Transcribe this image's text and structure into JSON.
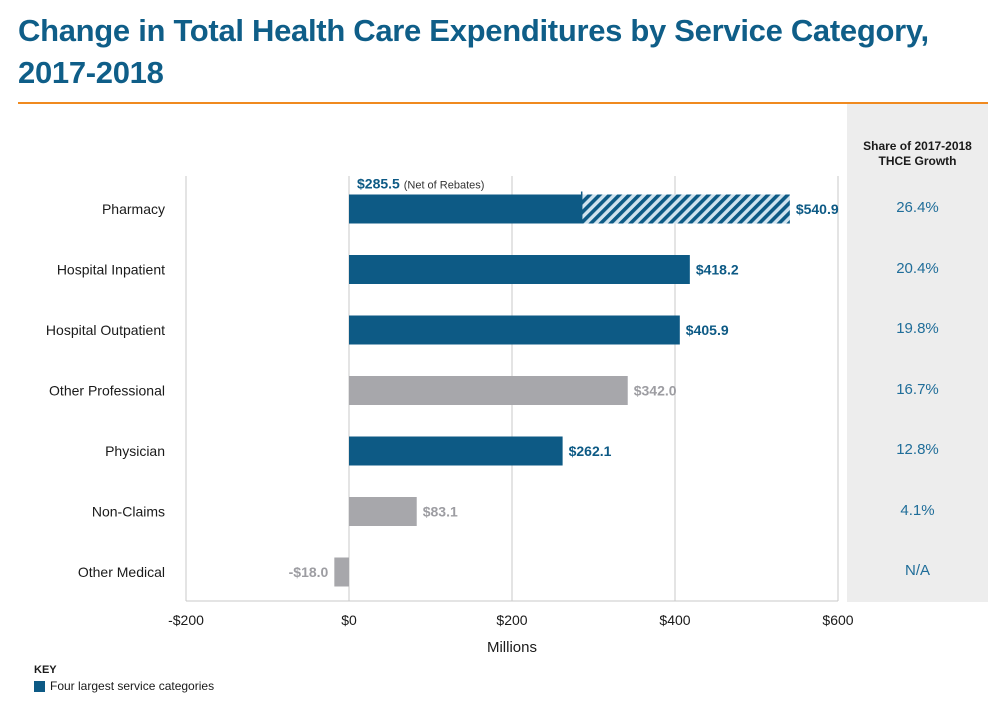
{
  "title": "Change in Total Health Care Expenditures by Service Category, 2017-2018",
  "share_header": "Share of 2017-2018\nTHCE Growth",
  "key": {
    "title": "KEY",
    "label": "Four largest service categories"
  },
  "colors": {
    "title": "#0f5e88",
    "accent_rule": "#f08a1f",
    "highlight_bar": "#0d5a85",
    "other_bar": "#a7a7ab",
    "highlight_label": "#0d5a85",
    "other_label": "#9d9da2",
    "share_text": "#1f6d99",
    "share_panel": "#ededed"
  },
  "chart_data": {
    "type": "bar",
    "orientation": "horizontal",
    "xlabel": "Millions",
    "xlim": [
      -200,
      600
    ],
    "xticks": [
      -200,
      0,
      200,
      400,
      600
    ],
    "xtick_labels": [
      "-$200",
      "$0",
      "$200",
      "$400",
      "$600"
    ],
    "grid": true,
    "categories": [
      "Pharmacy",
      "Hospital Inpatient",
      "Hospital Outpatient",
      "Other Professional",
      "Physician",
      "Non-Claims",
      "Other Medical"
    ],
    "values": [
      540.9,
      418.2,
      405.9,
      342.0,
      262.1,
      83.1,
      -18.0
    ],
    "value_labels": [
      "$540.9",
      "$418.2",
      "$405.9",
      "$342.0",
      "$262.1",
      "$83.1",
      "-$18.0"
    ],
    "highlighted": [
      true,
      true,
      true,
      false,
      true,
      false,
      false
    ],
    "shares": [
      "26.4%",
      "20.4%",
      "19.8%",
      "16.7%",
      "12.8%",
      "4.1%",
      "N/A"
    ],
    "annotation": {
      "category": "Pharmacy",
      "value": 285.5,
      "value_label": "$285.5",
      "note": "(Net of Rebates)"
    }
  }
}
